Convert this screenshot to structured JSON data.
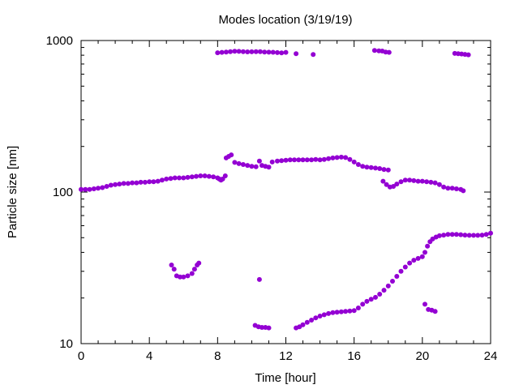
{
  "chart_data": {
    "type": "scatter",
    "title": "Modes location (3/19/19)",
    "xlabel": "Time [hour]",
    "ylabel": "Particle size [nm]",
    "xlim": [
      0,
      24
    ],
    "ylim": [
      10,
      1000
    ],
    "y_scale": "log",
    "grid": false,
    "legend": "none",
    "marker_color": "#9400d3",
    "x_ticks": [
      0,
      4,
      8,
      12,
      16,
      20,
      24
    ],
    "x_tick_labels": [
      "0",
      "4",
      "8",
      "12",
      "16",
      "20",
      "24"
    ],
    "y_ticks": [
      10,
      100,
      1000
    ],
    "y_tick_labels": [
      "10",
      "100",
      "1000"
    ],
    "series": [
      {
        "values": [
          [
            0.0,
            104
          ],
          [
            0.25,
            104
          ],
          [
            0.5,
            104
          ],
          [
            0.75,
            105
          ],
          [
            1.0,
            106
          ],
          [
            1.25,
            107
          ],
          [
            1.5,
            109
          ],
          [
            1.75,
            111
          ],
          [
            2.0,
            112
          ],
          [
            2.25,
            113
          ],
          [
            2.5,
            114
          ],
          [
            2.75,
            114
          ],
          [
            3.0,
            115
          ],
          [
            3.25,
            115
          ],
          [
            3.5,
            116
          ],
          [
            3.75,
            116
          ],
          [
            4.0,
            117
          ],
          [
            4.25,
            117
          ],
          [
            4.5,
            118
          ],
          [
            4.75,
            120
          ],
          [
            5.0,
            122
          ],
          [
            5.25,
            123
          ],
          [
            5.5,
            124
          ],
          [
            5.75,
            124
          ],
          [
            6.0,
            124
          ],
          [
            6.25,
            125
          ],
          [
            6.5,
            126
          ],
          [
            6.75,
            127
          ],
          [
            7.0,
            128
          ],
          [
            7.25,
            128
          ],
          [
            7.5,
            127
          ],
          [
            7.75,
            126
          ],
          [
            8.0,
            124
          ],
          [
            8.1,
            122
          ],
          [
            8.2,
            120
          ],
          [
            8.3,
            122
          ],
          [
            8.45,
            128
          ],
          [
            8.5,
            168
          ],
          [
            8.65,
            172
          ],
          [
            8.8,
            176
          ],
          [
            9.0,
            157
          ],
          [
            9.25,
            154
          ],
          [
            9.5,
            152
          ],
          [
            9.75,
            150
          ],
          [
            10.0,
            148
          ],
          [
            10.25,
            147
          ],
          [
            10.45,
            160
          ],
          [
            10.6,
            150
          ],
          [
            10.8,
            148
          ],
          [
            11.0,
            146
          ],
          [
            11.2,
            158
          ],
          [
            11.5,
            160
          ],
          [
            11.75,
            161
          ],
          [
            12.0,
            162
          ],
          [
            12.25,
            163
          ],
          [
            12.5,
            163
          ],
          [
            12.75,
            163
          ],
          [
            13.0,
            163
          ],
          [
            13.25,
            163
          ],
          [
            13.5,
            163
          ],
          [
            13.75,
            164
          ],
          [
            14.0,
            163
          ],
          [
            14.25,
            164
          ],
          [
            14.5,
            166
          ],
          [
            14.75,
            168
          ],
          [
            15.0,
            169
          ],
          [
            15.25,
            170
          ],
          [
            15.5,
            169
          ],
          [
            15.75,
            164
          ],
          [
            16.0,
            158
          ],
          [
            16.25,
            152
          ],
          [
            16.5,
            148
          ],
          [
            16.75,
            146
          ],
          [
            17.0,
            145
          ],
          [
            17.25,
            144
          ],
          [
            17.5,
            143
          ],
          [
            17.75,
            141
          ],
          [
            18.0,
            140
          ],
          [
            17.7,
            118
          ],
          [
            17.9,
            112
          ],
          [
            18.1,
            108
          ],
          [
            18.3,
            109
          ],
          [
            18.5,
            113
          ],
          [
            18.75,
            117
          ],
          [
            19.0,
            120
          ],
          [
            19.25,
            120
          ],
          [
            19.5,
            119
          ],
          [
            19.75,
            118
          ],
          [
            20.0,
            118
          ],
          [
            20.25,
            117
          ],
          [
            20.5,
            116
          ],
          [
            20.75,
            115
          ],
          [
            21.0,
            112
          ],
          [
            21.25,
            108
          ],
          [
            21.5,
            106
          ],
          [
            21.75,
            106
          ],
          [
            22.0,
            105
          ],
          [
            22.25,
            104
          ],
          [
            22.4,
            102
          ],
          [
            8.0,
            830
          ],
          [
            8.25,
            835
          ],
          [
            8.5,
            840
          ],
          [
            8.75,
            845
          ],
          [
            9.0,
            850
          ],
          [
            9.25,
            848
          ],
          [
            9.5,
            845
          ],
          [
            9.75,
            842
          ],
          [
            10.0,
            843
          ],
          [
            10.25,
            845
          ],
          [
            10.5,
            845
          ],
          [
            10.75,
            840
          ],
          [
            11.0,
            838
          ],
          [
            11.25,
            836
          ],
          [
            11.5,
            832
          ],
          [
            11.75,
            828
          ],
          [
            12.0,
            835
          ],
          [
            12.6,
            818
          ],
          [
            13.6,
            808
          ],
          [
            17.2,
            860
          ],
          [
            17.45,
            855
          ],
          [
            17.65,
            852
          ],
          [
            17.85,
            840
          ],
          [
            18.05,
            835
          ],
          [
            21.9,
            822
          ],
          [
            22.1,
            818
          ],
          [
            22.3,
            815
          ],
          [
            22.5,
            810
          ],
          [
            22.7,
            805
          ],
          [
            5.3,
            33
          ],
          [
            5.45,
            31
          ],
          [
            5.6,
            28
          ],
          [
            5.8,
            27.5
          ],
          [
            6.0,
            27.5
          ],
          [
            6.25,
            28
          ],
          [
            6.5,
            29
          ],
          [
            6.65,
            31
          ],
          [
            6.8,
            33
          ],
          [
            6.9,
            34
          ],
          [
            10.45,
            26.5
          ],
          [
            10.2,
            13.2
          ],
          [
            10.4,
            12.9
          ],
          [
            10.6,
            12.8
          ],
          [
            10.8,
            12.8
          ],
          [
            11.0,
            12.7
          ],
          [
            12.6,
            12.7
          ],
          [
            12.8,
            12.9
          ],
          [
            13.0,
            13.3
          ],
          [
            13.25,
            13.8
          ],
          [
            13.5,
            14.3
          ],
          [
            13.75,
            14.8
          ],
          [
            14.0,
            15.2
          ],
          [
            14.25,
            15.5
          ],
          [
            14.5,
            15.8
          ],
          [
            14.75,
            16.0
          ],
          [
            15.0,
            16.1
          ],
          [
            15.25,
            16.2
          ],
          [
            15.5,
            16.3
          ],
          [
            15.75,
            16.4
          ],
          [
            16.0,
            16.5
          ],
          [
            16.25,
            17.2
          ],
          [
            16.5,
            18.2
          ],
          [
            16.75,
            19.0
          ],
          [
            17.0,
            19.6
          ],
          [
            17.25,
            20.2
          ],
          [
            17.5,
            21.2
          ],
          [
            17.75,
            22.5
          ],
          [
            18.0,
            24.0
          ],
          [
            18.25,
            25.8
          ],
          [
            18.5,
            27.8
          ],
          [
            18.75,
            30.0
          ],
          [
            19.0,
            32.0
          ],
          [
            19.25,
            34.0
          ],
          [
            19.5,
            35.5
          ],
          [
            19.75,
            36.5
          ],
          [
            20.0,
            37.5
          ],
          [
            20.15,
            40.0
          ],
          [
            20.3,
            44.0
          ],
          [
            20.45,
            47.0
          ],
          [
            20.6,
            49.0
          ],
          [
            20.8,
            50.5
          ],
          [
            21.0,
            51.5
          ],
          [
            21.25,
            52.0
          ],
          [
            21.5,
            52.5
          ],
          [
            21.75,
            52.5
          ],
          [
            22.0,
            52.5
          ],
          [
            22.25,
            52.3
          ],
          [
            22.5,
            52.0
          ],
          [
            22.75,
            51.8
          ],
          [
            23.0,
            51.8
          ],
          [
            23.25,
            51.8
          ],
          [
            23.5,
            52.0
          ],
          [
            23.75,
            52.5
          ],
          [
            24.0,
            53.5
          ],
          [
            20.15,
            18.2
          ],
          [
            20.35,
            16.8
          ],
          [
            20.55,
            16.6
          ],
          [
            20.75,
            16.3
          ]
        ]
      }
    ]
  }
}
